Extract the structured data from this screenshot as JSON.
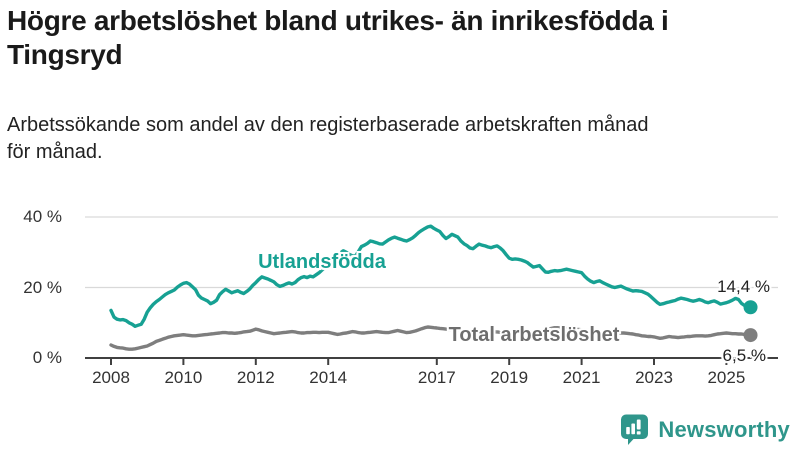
{
  "header": {
    "title": "Högre arbetslöshet bland utrikes- än inrikesfödda i\nTingsryd",
    "subtitle": "Arbetssökande som andel av den registerbaserade arbetskraften månad\nför månad."
  },
  "footer": {
    "brand": "Newsworthy",
    "brand_color": "#2f968b",
    "logo_icon": "bar-chart-speech-bubble-icon"
  },
  "chart_data": {
    "type": "line",
    "title": "Högre arbetslöshet bland utrikes- än inrikesfödda i Tingsryd",
    "subtitle": "Arbetssökande som andel av den registerbaserade arbetskraften månad för månad.",
    "unit": "%",
    "frequency": "monthly",
    "start_year": 2008,
    "x_axis": {
      "tick_labels": [
        "2008",
        "2010",
        "2012",
        "2014",
        "2017",
        "2019",
        "2021",
        "2023",
        "2025"
      ],
      "tick_years": [
        2008,
        2010,
        2012,
        2014,
        2017,
        2019,
        2021,
        2023,
        2025
      ],
      "range_years": [
        2008,
        2025.75
      ]
    },
    "y_axis": {
      "tick_labels": [
        "0 %",
        "20 %",
        "40 %"
      ],
      "tick_values": [
        0,
        20,
        40
      ],
      "range": [
        0,
        42
      ],
      "grid": true,
      "gridline_color": "#d9d9d9",
      "axis_color": "#404040"
    },
    "legend_position": "inline-labels",
    "series": [
      {
        "name": "Utlandsfödda",
        "color": "#17a193",
        "end_label": "14,4 %",
        "end_value": 14.4,
        "values": [
          13.5,
          11.6,
          11.0,
          10.8,
          10.9,
          10.6,
          10.0,
          9.6,
          9.0,
          9.3,
          9.6,
          11.0,
          13.0,
          14.2,
          15.2,
          16.0,
          16.6,
          17.3,
          18.0,
          18.5,
          18.9,
          19.3,
          20.1,
          20.7,
          21.2,
          21.4,
          21.0,
          20.2,
          19.4,
          17.8,
          17.0,
          16.6,
          16.2,
          15.4,
          15.8,
          16.4,
          18.0,
          18.8,
          19.5,
          19.0,
          18.5,
          18.8,
          19.1,
          18.6,
          18.3,
          18.9,
          19.6,
          20.6,
          21.4,
          22.3,
          23.0,
          22.7,
          22.4,
          22.0,
          21.6,
          20.8,
          20.3,
          20.6,
          21.0,
          21.3,
          21.0,
          21.4,
          22.2,
          22.8,
          23.1,
          22.8,
          23.2,
          23.0,
          23.6,
          24.2,
          25.0,
          25.8,
          26.5,
          27.3,
          28.2,
          29.2,
          29.8,
          30.4,
          30.0,
          29.4,
          29.0,
          28.9,
          30.2,
          31.6,
          32.0,
          32.5,
          33.2,
          33.0,
          32.7,
          32.4,
          32.3,
          32.9,
          33.5,
          34.0,
          34.3,
          34.0,
          33.7,
          33.4,
          33.2,
          33.6,
          34.1,
          34.8,
          35.6,
          36.2,
          36.7,
          37.2,
          37.4,
          36.8,
          36.3,
          35.9,
          34.8,
          33.9,
          34.4,
          35.1,
          34.7,
          34.3,
          33.2,
          32.4,
          31.9,
          31.2,
          31.0,
          31.7,
          32.3,
          32.0,
          31.8,
          31.5,
          31.3,
          31.6,
          31.8,
          31.2,
          30.4,
          29.3,
          28.3,
          28.0,
          28.1,
          28.0,
          27.8,
          27.5,
          27.1,
          26.4,
          25.8,
          26.0,
          26.2,
          25.3,
          24.4,
          24.3,
          24.6,
          24.8,
          24.7,
          24.8,
          25.0,
          25.2,
          25.0,
          24.8,
          24.6,
          24.4,
          24.2,
          23.2,
          22.4,
          21.8,
          21.4,
          21.7,
          21.9,
          21.4,
          21.0,
          20.6,
          20.2,
          20.0,
          20.2,
          20.4,
          20.0,
          19.6,
          19.3,
          19.0,
          19.1,
          19.0,
          18.9,
          18.5,
          18.1,
          17.4,
          16.6,
          15.8,
          15.2,
          15.4,
          15.7,
          15.9,
          16.1,
          16.3,
          16.7,
          17.0,
          16.8,
          16.6,
          16.3,
          16.1,
          16.3,
          16.6,
          16.3,
          15.9,
          15.7,
          16.0,
          16.2,
          15.8,
          15.3,
          15.5,
          15.7,
          16.0,
          16.4,
          16.9,
          16.6,
          15.5,
          14.9,
          14.6,
          14.4
        ]
      },
      {
        "name": "Total arbetslöshet",
        "color": "#7e7e7e",
        "end_label": "6,5 %",
        "end_value": 6.5,
        "values": [
          3.7,
          3.3,
          3.0,
          2.9,
          2.8,
          2.6,
          2.5,
          2.5,
          2.6,
          2.8,
          3.0,
          3.2,
          3.4,
          3.8,
          4.2,
          4.7,
          5.0,
          5.3,
          5.6,
          5.9,
          6.1,
          6.3,
          6.4,
          6.5,
          6.6,
          6.5,
          6.4,
          6.3,
          6.3,
          6.4,
          6.5,
          6.6,
          6.7,
          6.8,
          6.9,
          7.0,
          7.1,
          7.2,
          7.2,
          7.1,
          7.1,
          7.0,
          7.1,
          7.2,
          7.4,
          7.5,
          7.6,
          7.9,
          8.2,
          8.0,
          7.7,
          7.5,
          7.3,
          7.1,
          6.9,
          7.0,
          7.1,
          7.2,
          7.3,
          7.4,
          7.5,
          7.4,
          7.2,
          7.1,
          7.1,
          7.2,
          7.2,
          7.3,
          7.3,
          7.2,
          7.3,
          7.3,
          7.3,
          7.1,
          6.9,
          6.7,
          6.8,
          7.0,
          7.1,
          7.3,
          7.5,
          7.4,
          7.2,
          7.1,
          7.1,
          7.2,
          7.3,
          7.4,
          7.5,
          7.4,
          7.3,
          7.2,
          7.2,
          7.4,
          7.6,
          7.8,
          7.6,
          7.4,
          7.2,
          7.3,
          7.5,
          7.7,
          8.0,
          8.3,
          8.6,
          8.8,
          8.7,
          8.6,
          8.5,
          8.4,
          8.3,
          8.2,
          8.1,
          8.0,
          8.0,
          7.9,
          7.9,
          7.8,
          7.8,
          7.8,
          7.8,
          7.7,
          7.7,
          7.6,
          7.6,
          7.5,
          7.5,
          7.4,
          7.4,
          7.3,
          7.3,
          7.2,
          7.2,
          7.2,
          7.2,
          7.2,
          7.3,
          7.3,
          7.4,
          7.4,
          7.5,
          7.6,
          7.7,
          7.8,
          7.9,
          8.1,
          8.4,
          8.6,
          8.6,
          8.5,
          8.5,
          8.4,
          8.3,
          8.2,
          8.1,
          8.1,
          8.0,
          8.0,
          7.9,
          7.8,
          7.8,
          7.7,
          7.6,
          7.6,
          7.5,
          7.4,
          7.3,
          7.3,
          7.2,
          7.1,
          7.1,
          7.0,
          6.9,
          6.8,
          6.6,
          6.5,
          6.3,
          6.2,
          6.1,
          6.1,
          6.0,
          5.8,
          5.6,
          5.7,
          5.9,
          6.1,
          6.0,
          5.9,
          5.8,
          5.9,
          6.0,
          6.1,
          6.1,
          6.2,
          6.3,
          6.3,
          6.3,
          6.2,
          6.3,
          6.4,
          6.6,
          6.8,
          6.9,
          7.0,
          7.1,
          7.0,
          6.9,
          6.9,
          6.8,
          6.8,
          6.7,
          6.6,
          6.5
        ]
      }
    ]
  }
}
